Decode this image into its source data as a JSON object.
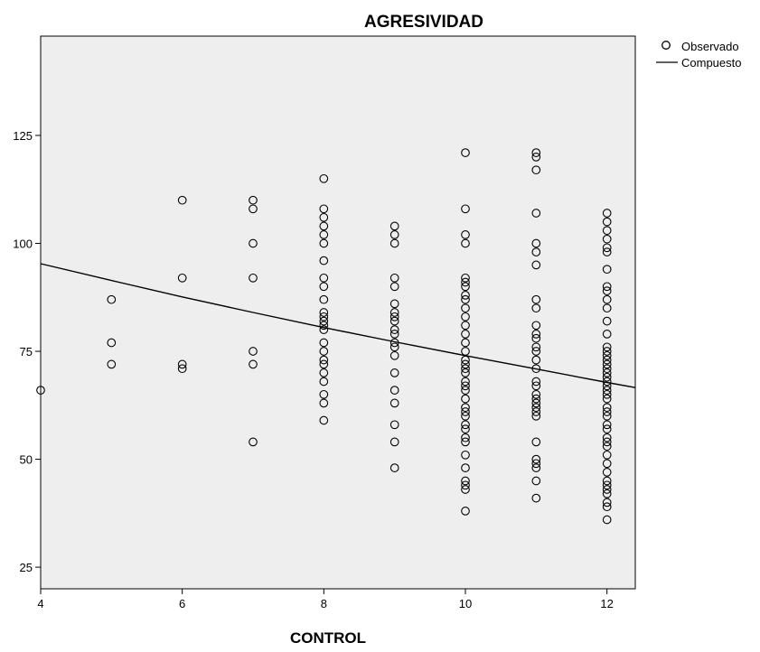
{
  "chart_data": {
    "type": "scatter",
    "title": "AGRESIVIDAD",
    "xlabel": "CONTROL",
    "ylabel": "",
    "xlim": [
      4,
      12.4
    ],
    "ylim": [
      20,
      148
    ],
    "xticks": [
      4,
      6,
      8,
      10,
      12
    ],
    "yticks": [
      25,
      50,
      75,
      100,
      125
    ],
    "grid": false,
    "legend_position": "top-right outside",
    "legend": [
      "Observado",
      "Compuesto"
    ],
    "colors": {
      "plot_bg": "#eeeeee",
      "marker": "#000000",
      "line": "#000000"
    },
    "series": [
      {
        "name": "Observado",
        "type": "scatter",
        "points": [
          [
            4,
            66
          ],
          [
            5,
            87
          ],
          [
            5,
            77
          ],
          [
            5,
            72
          ],
          [
            6,
            110
          ],
          [
            6,
            92
          ],
          [
            6,
            72
          ],
          [
            6,
            71
          ],
          [
            7,
            110
          ],
          [
            7,
            108
          ],
          [
            7,
            100
          ],
          [
            7,
            92
          ],
          [
            7,
            75
          ],
          [
            7,
            72
          ],
          [
            7,
            54
          ],
          [
            8,
            115
          ],
          [
            8,
            108
          ],
          [
            8,
            106
          ],
          [
            8,
            104
          ],
          [
            8,
            102
          ],
          [
            8,
            100
          ],
          [
            8,
            96
          ],
          [
            8,
            92
          ],
          [
            8,
            90
          ],
          [
            8,
            87
          ],
          [
            8,
            84
          ],
          [
            8,
            83
          ],
          [
            8,
            82
          ],
          [
            8,
            81
          ],
          [
            8,
            80
          ],
          [
            8,
            77
          ],
          [
            8,
            75
          ],
          [
            8,
            73
          ],
          [
            8,
            72
          ],
          [
            8,
            70
          ],
          [
            8,
            68
          ],
          [
            8,
            65
          ],
          [
            8,
            63
          ],
          [
            8,
            59
          ],
          [
            9,
            104
          ],
          [
            9,
            102
          ],
          [
            9,
            100
          ],
          [
            9,
            92
          ],
          [
            9,
            90
          ],
          [
            9,
            86
          ],
          [
            9,
            84
          ],
          [
            9,
            83
          ],
          [
            9,
            82
          ],
          [
            9,
            80
          ],
          [
            9,
            79
          ],
          [
            9,
            77
          ],
          [
            9,
            76
          ],
          [
            9,
            74
          ],
          [
            9,
            70
          ],
          [
            9,
            66
          ],
          [
            9,
            63
          ],
          [
            9,
            58
          ],
          [
            9,
            54
          ],
          [
            9,
            48
          ],
          [
            10,
            121
          ],
          [
            10,
            108
          ],
          [
            10,
            102
          ],
          [
            10,
            100
          ],
          [
            10,
            92
          ],
          [
            10,
            91
          ],
          [
            10,
            90
          ],
          [
            10,
            88
          ],
          [
            10,
            87
          ],
          [
            10,
            85
          ],
          [
            10,
            83
          ],
          [
            10,
            81
          ],
          [
            10,
            79
          ],
          [
            10,
            77
          ],
          [
            10,
            75
          ],
          [
            10,
            73
          ],
          [
            10,
            72
          ],
          [
            10,
            71
          ],
          [
            10,
            70
          ],
          [
            10,
            68
          ],
          [
            10,
            67
          ],
          [
            10,
            66
          ],
          [
            10,
            64
          ],
          [
            10,
            62
          ],
          [
            10,
            61
          ],
          [
            10,
            60
          ],
          [
            10,
            58
          ],
          [
            10,
            57
          ],
          [
            10,
            55
          ],
          [
            10,
            54
          ],
          [
            10,
            51
          ],
          [
            10,
            48
          ],
          [
            10,
            45
          ],
          [
            10,
            44
          ],
          [
            10,
            43
          ],
          [
            10,
            38
          ],
          [
            11,
            121
          ],
          [
            11,
            120
          ],
          [
            11,
            117
          ],
          [
            11,
            107
          ],
          [
            11,
            100
          ],
          [
            11,
            98
          ],
          [
            11,
            95
          ],
          [
            11,
            87
          ],
          [
            11,
            85
          ],
          [
            11,
            81
          ],
          [
            11,
            79
          ],
          [
            11,
            78
          ],
          [
            11,
            76
          ],
          [
            11,
            75
          ],
          [
            11,
            73
          ],
          [
            11,
            71
          ],
          [
            11,
            68
          ],
          [
            11,
            67
          ],
          [
            11,
            65
          ],
          [
            11,
            64
          ],
          [
            11,
            63
          ],
          [
            11,
            62
          ],
          [
            11,
            61
          ],
          [
            11,
            60
          ],
          [
            11,
            54
          ],
          [
            11,
            50
          ],
          [
            11,
            49
          ],
          [
            11,
            48
          ],
          [
            11,
            45
          ],
          [
            11,
            41
          ],
          [
            12,
            107
          ],
          [
            12,
            105
          ],
          [
            12,
            103
          ],
          [
            12,
            101
          ],
          [
            12,
            99
          ],
          [
            12,
            98
          ],
          [
            12,
            94
          ],
          [
            12,
            90
          ],
          [
            12,
            89
          ],
          [
            12,
            87
          ],
          [
            12,
            85
          ],
          [
            12,
            82
          ],
          [
            12,
            79
          ],
          [
            12,
            76
          ],
          [
            12,
            75
          ],
          [
            12,
            74
          ],
          [
            12,
            73
          ],
          [
            12,
            72
          ],
          [
            12,
            71
          ],
          [
            12,
            70
          ],
          [
            12,
            69
          ],
          [
            12,
            68
          ],
          [
            12,
            67
          ],
          [
            12,
            66
          ],
          [
            12,
            65
          ],
          [
            12,
            64
          ],
          [
            12,
            62
          ],
          [
            12,
            61
          ],
          [
            12,
            60
          ],
          [
            12,
            58
          ],
          [
            12,
            57
          ],
          [
            12,
            55
          ],
          [
            12,
            54
          ],
          [
            12,
            53
          ],
          [
            12,
            51
          ],
          [
            12,
            49
          ],
          [
            12,
            47
          ],
          [
            12,
            45
          ],
          [
            12,
            44
          ],
          [
            12,
            43
          ],
          [
            12,
            42
          ],
          [
            12,
            40
          ],
          [
            12,
            39
          ],
          [
            12,
            36
          ]
        ]
      },
      {
        "name": "Compuesto",
        "type": "line",
        "points": [
          [
            4,
            95.3
          ],
          [
            5,
            91.4
          ],
          [
            6,
            87.6
          ],
          [
            7,
            84.0
          ],
          [
            8,
            80.5
          ],
          [
            9,
            77.2
          ],
          [
            10,
            74.0
          ],
          [
            11,
            70.9
          ],
          [
            12,
            67.8
          ],
          [
            12.4,
            66.6
          ]
        ]
      }
    ]
  }
}
